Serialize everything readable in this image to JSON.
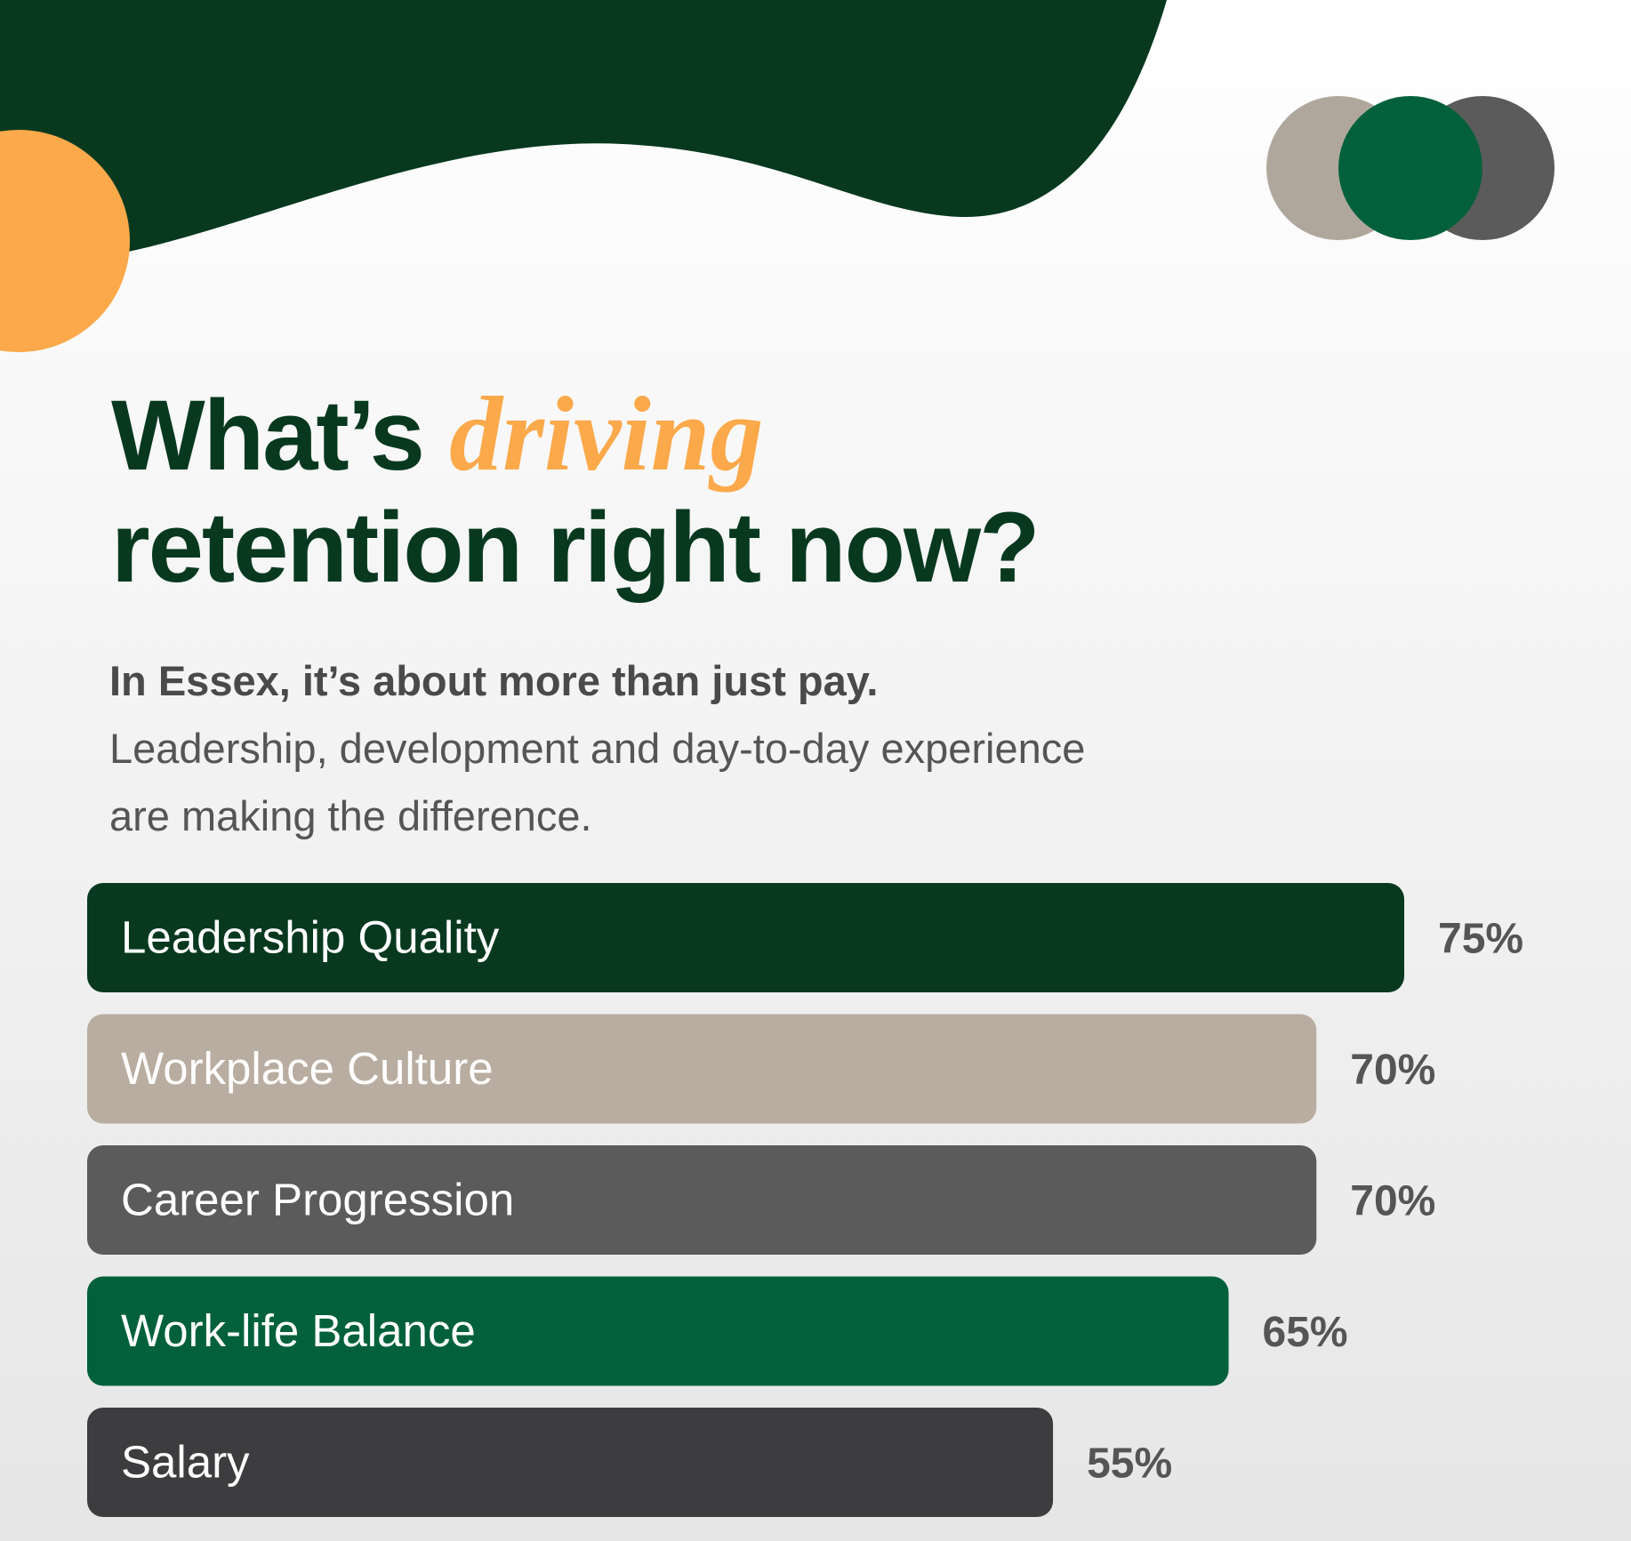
{
  "chart_data": {
    "type": "hbar",
    "title_parts": [
      "What’s",
      "driving",
      "retention right now?"
    ],
    "subtitle": "In Essex, it’s about more than just pay.",
    "description": "Leadership, development and day-to-day experience are making the difference.",
    "categories": [
      "Leadership Quality",
      "Workplace Culture",
      "Career Progression",
      "Work-life Balance",
      "Salary"
    ],
    "values": [
      75,
      70,
      70,
      65,
      55
    ],
    "value_labels": [
      "75%",
      "70%",
      "70%",
      "65%",
      "55%"
    ],
    "colors": [
      "#08391f",
      "#b8ada0",
      "#5b5b5b",
      "#02613b",
      "#3d3d3f"
    ]
  }
}
